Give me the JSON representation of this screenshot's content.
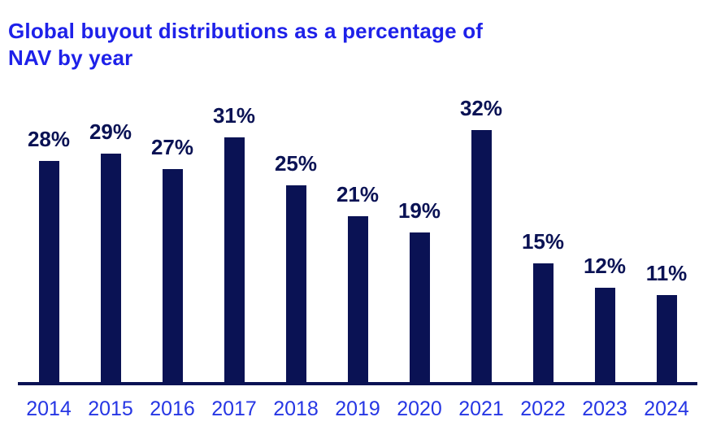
{
  "header": {
    "title_line1": "Global buyout distributions as a percentage of",
    "title_line2": "NAV by year"
  },
  "chart_data": {
    "type": "bar",
    "title": "Global buyout distributions as a percentage of NAV by year",
    "categories": [
      "2014",
      "2015",
      "2016",
      "2017",
      "2018",
      "2019",
      "2020",
      "2021",
      "2022",
      "2023",
      "2024"
    ],
    "values": [
      28,
      29,
      27,
      31,
      25,
      21,
      19,
      32,
      15,
      12,
      11
    ],
    "unit": "%",
    "xlabel": "",
    "ylabel": "",
    "ylim": [
      0,
      35
    ],
    "grid": false,
    "legend_position": "none",
    "data_labels": true,
    "colors": {
      "bar": "#0a1254",
      "data_label": "#0a1254",
      "axis_line": "#0a1254",
      "title": "#1e21e9",
      "tick_label": "#2636e4"
    }
  }
}
